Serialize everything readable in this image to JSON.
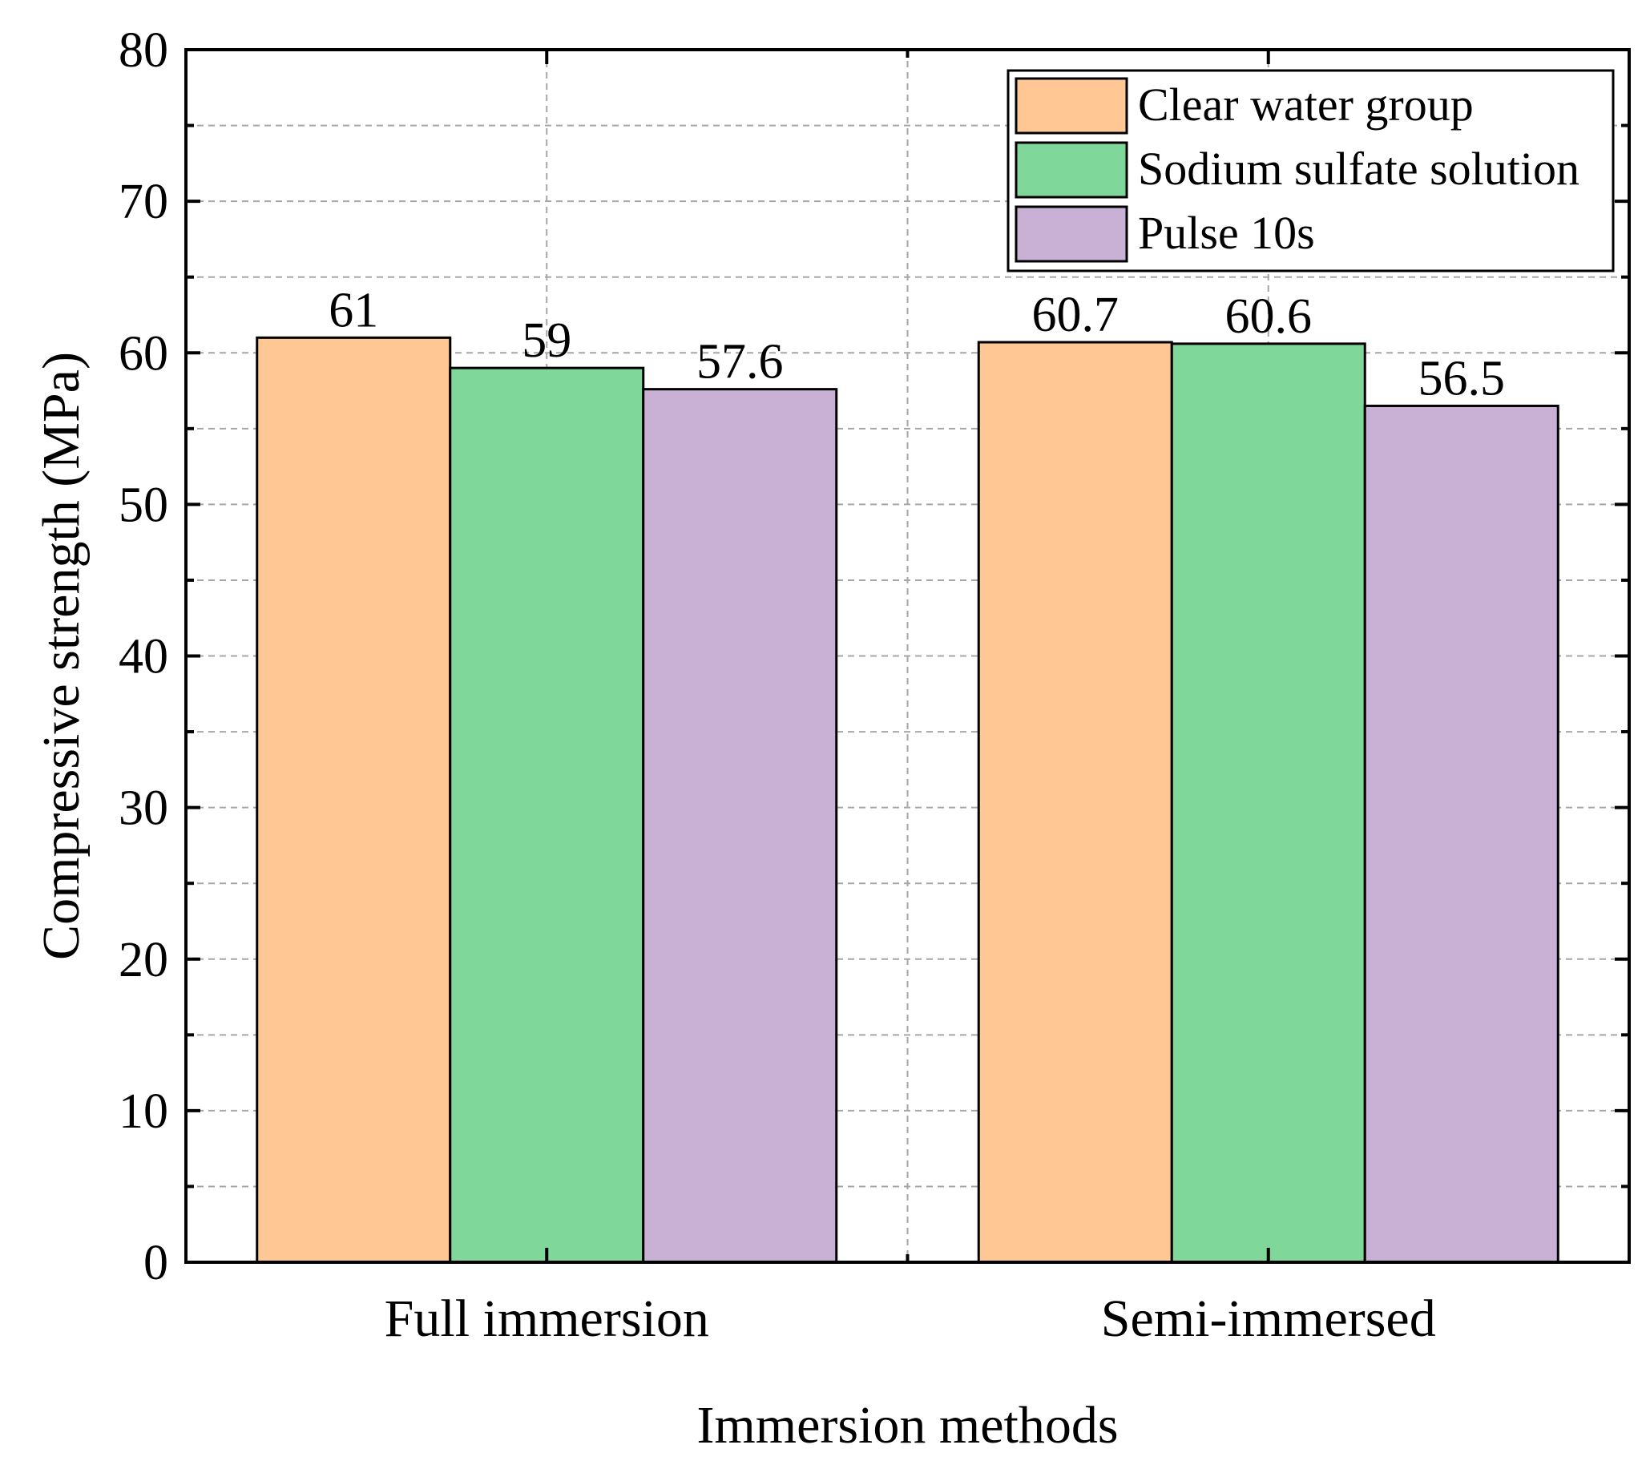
{
  "chart_data": {
    "type": "bar",
    "xlabel": "Immersion methods",
    "ylabel": "Compressive strength (MPa)",
    "ylim": [
      0,
      80
    ],
    "yticks": [
      0,
      10,
      20,
      30,
      40,
      50,
      60,
      70,
      80
    ],
    "grid": true,
    "legend_position": "top-right",
    "categories": [
      "Full immersion",
      "Semi-immersed"
    ],
    "series": [
      {
        "name": "Clear water group",
        "color": "#FEC794",
        "values": [
          61,
          60.7
        ],
        "labels": [
          "61",
          "60.7"
        ]
      },
      {
        "name": "Sodium sulfate solution",
        "color": "#7FD899",
        "values": [
          59,
          60.6
        ],
        "labels": [
          "59",
          "60.6"
        ]
      },
      {
        "name": "Pulse 10s",
        "color": "#C8B1D5",
        "values": [
          57.6,
          56.5
        ],
        "labels": [
          "57.6",
          "56.5"
        ]
      }
    ]
  }
}
